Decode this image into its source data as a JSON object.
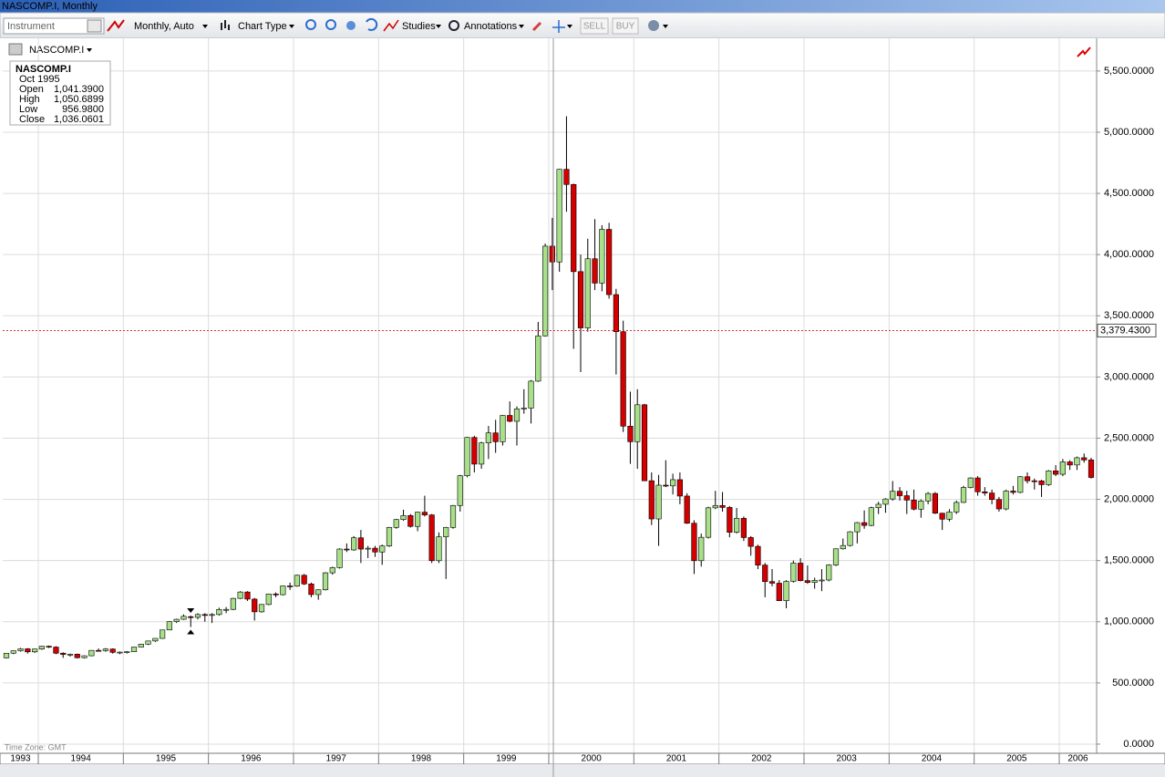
{
  "window_title": "NASCOMP.I, Monthly",
  "toolbar": {
    "instrument_placeholder": "Instrument",
    "interval": "Monthly, Auto",
    "chart_type": "Chart Type",
    "studies": "Studies",
    "annotations": "Annotations",
    "sell": "SELL",
    "buy": "BUY"
  },
  "chart_data": {
    "type": "candlestick",
    "instrument": "NASCOMP.I",
    "time_zone": "Time Zone: GMT",
    "categories": [
      "1993",
      null,
      null,
      null,
      null,
      "1994",
      null,
      null,
      null,
      null,
      null,
      null,
      null,
      null,
      null,
      null,
      null,
      "1995",
      null,
      null,
      null,
      null,
      null,
      null,
      null,
      null,
      null,
      null,
      null,
      "1996",
      null,
      null,
      null,
      null,
      null,
      null,
      null,
      null,
      null,
      null,
      null,
      "1997",
      null,
      null,
      null,
      null,
      null,
      null,
      null,
      null,
      null,
      null,
      null,
      "1998",
      null,
      null,
      null,
      null,
      null,
      null,
      null,
      null,
      null,
      null,
      null,
      "1999",
      null,
      null,
      null,
      null,
      null,
      null,
      null,
      null,
      null,
      null,
      null,
      "2000",
      null,
      null,
      null,
      null,
      null,
      null,
      null,
      null,
      null,
      null,
      null,
      "2001",
      null,
      null,
      null,
      null,
      null,
      null,
      null,
      null,
      null,
      null,
      null,
      "2002",
      null,
      null,
      null,
      null,
      null,
      null,
      null,
      null,
      null,
      null,
      null,
      "2003",
      null,
      null,
      null,
      null,
      null,
      null,
      null,
      null,
      null,
      null,
      null,
      "2004",
      null,
      null,
      null,
      null,
      null,
      null,
      null,
      null,
      null,
      null,
      null,
      "2005",
      null,
      null,
      null,
      null,
      null,
      null,
      null,
      null,
      null,
      null,
      null,
      "2006",
      null,
      null,
      null,
      null
    ],
    "open": [
      705,
      743,
      763,
      779,
      754,
      777,
      800,
      793,
      743,
      733,
      735,
      706,
      722,
      766,
      764,
      777,
      750,
      752,
      755,
      793,
      817,
      843,
      864,
      933,
      1001,
      1020,
      1041.39,
      1036,
      1059,
      1052,
      1059,
      1100,
      1101,
      1191,
      1243,
      1185,
      1081,
      1141,
      1227,
      1221,
      1293,
      1291,
      1380,
      1309,
      1222,
      1261,
      1400,
      1442,
      1594,
      1587,
      1686,
      1594,
      1601,
      1570,
      1619,
      1771,
      1835,
      1868,
      1779,
      1895,
      1873,
      1499,
      1694,
      1771,
      1950,
      2193,
      2506,
      2288,
      2461,
      2543,
      2471,
      2686,
      2638,
      2739,
      2746,
      2966,
      3336,
      4069,
      3940,
      4697,
      4573,
      3861,
      3401,
      3966,
      3767,
      4206,
      3673,
      3370,
      2598,
      2471,
      2773,
      2152,
      1840,
      2116,
      2110,
      2161,
      2027,
      1805,
      1499,
      1690,
      1931,
      1950,
      1934,
      1731,
      1845,
      1688,
      1616,
      1463,
      1328,
      1315,
      1172,
      1330,
      1479,
      1336,
      1321,
      1338,
      1341,
      1464,
      1596,
      1623,
      1735,
      1810,
      1787,
      1932,
      1960,
      2003,
      2066,
      2030,
      1994,
      1920,
      1987,
      2048,
      1887,
      1838,
      1897,
      1975,
      2097,
      2175,
      2062,
      2052,
      1999,
      1922,
      2068,
      2057,
      2185,
      2152,
      2151,
      2120,
      2233,
      2205,
      2306,
      2281,
      2340,
      2322
    ],
    "high": [
      745,
      765,
      787,
      785,
      780,
      803,
      805,
      800,
      750,
      740,
      740,
      725,
      768,
      782,
      785,
      782,
      757,
      760,
      795,
      820,
      845,
      866,
      935,
      1005,
      1025,
      1060,
      1050.6899,
      1070,
      1070,
      1070,
      1115,
      1120,
      1195,
      1250,
      1250,
      1195,
      1145,
      1230,
      1240,
      1295,
      1320,
      1385,
      1390,
      1320,
      1265,
      1405,
      1450,
      1600,
      1640,
      1700,
      1750,
      1620,
      1620,
      1630,
      1775,
      1840,
      1915,
      1880,
      1900,
      2030,
      1880,
      1730,
      1775,
      1955,
      2200,
      2510,
      2520,
      2470,
      2600,
      2650,
      2690,
      2800,
      2760,
      2900,
      2975,
      3450,
      4090,
      4300,
      4700,
      5130,
      4580,
      4000,
      4130,
      4290,
      4240,
      4260,
      3720,
      3460,
      2880,
      2900,
      2780,
      2220,
      2200,
      2320,
      2210,
      2220,
      2050,
      1830,
      1720,
      1940,
      2070,
      2060,
      1945,
      1930,
      1860,
      1700,
      1630,
      1480,
      1430,
      1340,
      1340,
      1500,
      1520,
      1460,
      1360,
      1430,
      1470,
      1600,
      1680,
      1740,
      1815,
      1910,
      1940,
      1980,
      2010,
      2150,
      2100,
      2070,
      2080,
      2000,
      2060,
      2060,
      1890,
      1920,
      1990,
      2110,
      2180,
      2190,
      2100,
      2080,
      2020,
      2080,
      2110,
      2190,
      2220,
      2170,
      2160,
      2240,
      2280,
      2330,
      2320,
      2350,
      2375,
      2340
    ],
    "low": [
      700,
      735,
      755,
      740,
      745,
      770,
      785,
      735,
      705,
      715,
      700,
      700,
      718,
      758,
      755,
      740,
      735,
      740,
      752,
      790,
      810,
      835,
      860,
      930,
      990,
      1015,
      956.98,
      1020,
      1000,
      990,
      1050,
      1070,
      1095,
      1185,
      1170,
      1010,
      1075,
      1135,
      1200,
      1215,
      1260,
      1285,
      1300,
      1200,
      1180,
      1255,
      1385,
      1435,
      1570,
      1580,
      1480,
      1520,
      1530,
      1465,
      1610,
      1760,
      1825,
      1770,
      1740,
      1860,
      1480,
      1480,
      1350,
      1760,
      1900,
      2180,
      2220,
      2250,
      2330,
      2380,
      2440,
      2630,
      2440,
      2700,
      2620,
      2960,
      3330,
      3710,
      3860,
      4350,
      3230,
      3040,
      3370,
      3710,
      3700,
      3640,
      3020,
      2550,
      2290,
      2250,
      2150,
      1790,
      1620,
      2100,
      2040,
      1960,
      1800,
      1390,
      1450,
      1680,
      1920,
      1900,
      1690,
      1720,
      1660,
      1540,
      1430,
      1200,
      1290,
      1170,
      1110,
      1320,
      1330,
      1310,
      1270,
      1250,
      1330,
      1455,
      1590,
      1615,
      1640,
      1760,
      1780,
      1880,
      1890,
      1990,
      1990,
      1880,
      1910,
      1850,
      1960,
      1880,
      1750,
      1820,
      1880,
      1970,
      2090,
      2030,
      2030,
      1960,
      1900,
      1910,
      2040,
      2050,
      2130,
      2080,
      2020,
      2110,
      2190,
      2190,
      2240,
      2240,
      2300,
      2170
    ],
    "close": [
      743,
      763,
      779,
      754,
      777,
      800,
      793,
      743,
      733,
      735,
      706,
      722,
      766,
      764,
      777,
      750,
      752,
      755,
      793,
      817,
      843,
      864,
      933,
      1001,
      1020,
      1044,
      1036.0601,
      1059,
      1052,
      1059,
      1100,
      1101,
      1191,
      1243,
      1185,
      1081,
      1141,
      1227,
      1221,
      1293,
      1291,
      1380,
      1309,
      1222,
      1261,
      1400,
      1442,
      1594,
      1587,
      1686,
      1594,
      1601,
      1570,
      1619,
      1771,
      1835,
      1868,
      1779,
      1895,
      1873,
      1499,
      1694,
      1771,
      1950,
      2193,
      2506,
      2288,
      2461,
      2543,
      2471,
      2686,
      2638,
      2739,
      2746,
      2966,
      3336,
      4069,
      3940,
      4697,
      4573,
      3861,
      3401,
      3966,
      3767,
      4206,
      3673,
      3370,
      2598,
      2471,
      2773,
      2152,
      1840,
      2116,
      2110,
      2161,
      2027,
      1805,
      1499,
      1690,
      1931,
      1950,
      1934,
      1731,
      1845,
      1688,
      1616,
      1463,
      1328,
      1315,
      1172,
      1330,
      1479,
      1336,
      1321,
      1338,
      1341,
      1464,
      1596,
      1623,
      1735,
      1810,
      1787,
      1932,
      1960,
      2003,
      2066,
      2030,
      1994,
      1920,
      1987,
      2048,
      1887,
      1838,
      1897,
      1975,
      2097,
      2175,
      2062,
      2052,
      1999,
      1922,
      2068,
      2057,
      2185,
      2152,
      2151,
      2120,
      2233,
      2205,
      2306,
      2281,
      2340,
      2322,
      2179
    ],
    "up_color": "#a8e08a",
    "down_color": "#d40000",
    "grid": true,
    "ylim": [
      -45,
      5745
    ],
    "yticks": [
      {
        "value": 0,
        "label": "0.0000"
      },
      {
        "value": 500,
        "label": "500.0000"
      },
      {
        "value": 1000,
        "label": "1,000.0000"
      },
      {
        "value": 1500,
        "label": "1,500.0000"
      },
      {
        "value": 2000,
        "label": "2,000.0000"
      },
      {
        "value": 2500,
        "label": "2,500.0000"
      },
      {
        "value": 3000,
        "label": "3,000.0000"
      },
      {
        "value": 3500,
        "label": "3,500.0000"
      },
      {
        "value": 4000,
        "label": "4,000.0000"
      },
      {
        "value": 4500,
        "label": "4,500.0000"
      },
      {
        "value": 5000,
        "label": "5,000.0000"
      },
      {
        "value": 5500,
        "label": "5,500.0000"
      }
    ],
    "current_level": {
      "value": 3379.43,
      "label": "3,379.4300"
    },
    "tooltip": {
      "title": "NASCOMP.I",
      "date": "Oct 1995",
      "rows": [
        {
          "label": "Open",
          "value": "1,041.3900"
        },
        {
          "label": "High",
          "value": "1,050.6899"
        },
        {
          "label": "Low",
          "value": "956.9800"
        },
        {
          "label": "Close",
          "value": "1,036.0601"
        }
      ]
    }
  }
}
